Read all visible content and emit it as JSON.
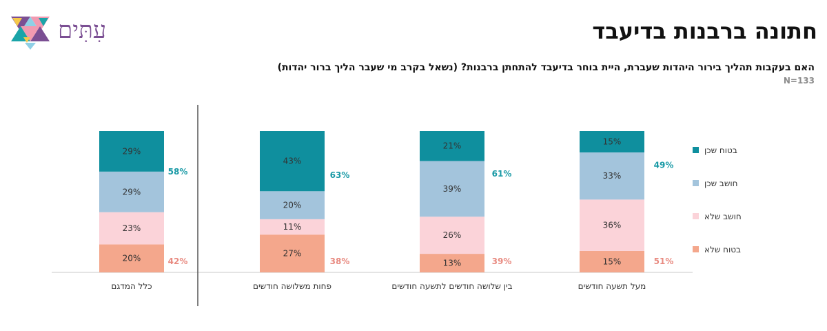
{
  "header": {
    "title": "חתונה ברבנות בדיעבד",
    "question": "האם בעקבות תהליך בירור היהדות שעברת, היית בוחר בדיעבד להתחתן ברבנות? (נשאל בקרב מי שעבר הליך ברור יהדות)",
    "sample_size": "N=133"
  },
  "logo": {
    "text": "עִתִּים",
    "icon": "star-of-david-triangles-icon"
  },
  "colors": {
    "sure_yes": "#0f8f9e",
    "think_yes": "#a3c4dc",
    "think_no": "#fbd3d9",
    "sure_no": "#f4a78c",
    "yes_total": "#1a9aa6",
    "no_total": "#e88a80",
    "label": "#333333",
    "axis": "#c8c8c8",
    "divider": "#555555"
  },
  "chart_data": {
    "type": "bar",
    "stacked": true,
    "categories": [
      "כלל המדגם",
      "פחות משלושה חודשים",
      "בין שלושה חודשים לתשעה חודשים",
      "מעל תשעה חודשים"
    ],
    "series": [
      {
        "name": "בטוח שלא",
        "values": [
          20,
          27,
          13,
          15
        ]
      },
      {
        "name": "חושב שלא",
        "values": [
          23,
          11,
          26,
          36
        ]
      },
      {
        "name": "חושב שכן",
        "values": [
          29,
          20,
          39,
          33
        ]
      },
      {
        "name": "בטוח שכן",
        "values": [
          29,
          43,
          21,
          15
        ]
      }
    ],
    "data_labels": {
      "series": [
        [
          "20%",
          "27%",
          "13%",
          "15%"
        ],
        [
          "23%",
          "11%",
          "26%",
          "36%"
        ],
        [
          "29%",
          "20%",
          "39%",
          "33%"
        ],
        [
          "29%",
          "43%",
          "21%",
          "15%"
        ]
      ]
    },
    "yes_totals": {
      "values": [
        58,
        63,
        61,
        49
      ],
      "labels": [
        "58%",
        "63%",
        "61%",
        "49%"
      ]
    },
    "no_totals": {
      "values": [
        42,
        38,
        39,
        51
      ],
      "labels": [
        "42%",
        "38%",
        "39%",
        "51%"
      ]
    },
    "legend": {
      "placement": "right",
      "items": [
        "בטוח שכן",
        "חושב שכן",
        "חושב שלא",
        "בטוח שלא"
      ]
    },
    "ylim": [
      0,
      100
    ]
  }
}
